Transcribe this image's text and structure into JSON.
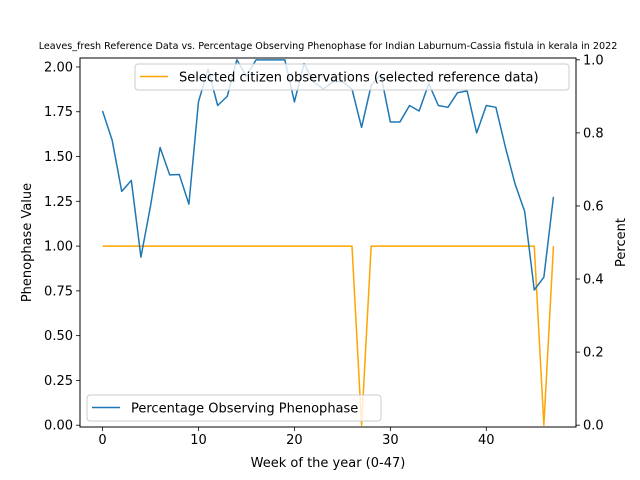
{
  "chart_data": {
    "type": "line",
    "title": "Leaves_fresh Reference Data vs. Percentage Observing Phenophase for Indian Laburnum-Cassia fistula in kerala in 2022",
    "xlabel": "Week of the year (0-47)",
    "ylabel_left": "Phenophase Value",
    "ylabel_right": "Percent",
    "xlim": [
      -2.35,
      49.35
    ],
    "ylim_left": [
      -0.01,
      2.05
    ],
    "ylim_right": [
      -0.005,
      1.005
    ],
    "x_ticks": [
      0,
      10,
      20,
      30,
      40
    ],
    "y_ticks_left": [
      0.0,
      0.25,
      0.5,
      0.75,
      1.0,
      1.25,
      1.5,
      1.75,
      2.0
    ],
    "y_tick_labels_left": [
      "0.00",
      "0.25",
      "0.50",
      "0.75",
      "1.00",
      "1.25",
      "1.50",
      "1.75",
      "2.00"
    ],
    "y_ticks_right": [
      0.0,
      0.2,
      0.4,
      0.6,
      0.8,
      1.0
    ],
    "y_tick_labels_right": [
      "0.0",
      "0.2",
      "0.4",
      "0.6",
      "0.8",
      "1.0"
    ],
    "series": [
      {
        "name": "Selected citizen observations (selected reference data)",
        "axis": "left",
        "color": "#ffa500",
        "x": [
          0,
          1,
          2,
          3,
          4,
          5,
          6,
          7,
          8,
          9,
          10,
          11,
          12,
          13,
          14,
          15,
          16,
          17,
          18,
          19,
          20,
          21,
          22,
          23,
          24,
          25,
          26,
          27,
          28,
          29,
          30,
          31,
          32,
          33,
          34,
          35,
          36,
          37,
          38,
          39,
          40,
          41,
          42,
          43,
          44,
          45,
          46,
          47
        ],
        "values": [
          1,
          1,
          1,
          1,
          1,
          1,
          1,
          1,
          1,
          1,
          1,
          1,
          1,
          1,
          1,
          1,
          1,
          1,
          1,
          1,
          1,
          1,
          1,
          1,
          1,
          1,
          1,
          0,
          1,
          1,
          1,
          1,
          1,
          1,
          1,
          1,
          1,
          1,
          1,
          1,
          1,
          1,
          1,
          1,
          1,
          1,
          0,
          1
        ]
      },
      {
        "name": "Percentage Observing Phenophase",
        "axis": "right",
        "color": "#1f77b4",
        "x": [
          0,
          1,
          2,
          3,
          4,
          5,
          6,
          7,
          8,
          9,
          10,
          11,
          12,
          13,
          14,
          15,
          16,
          17,
          18,
          19,
          20,
          21,
          22,
          23,
          24,
          25,
          26,
          27,
          28,
          29,
          30,
          31,
          32,
          33,
          34,
          35,
          36,
          37,
          38,
          39,
          40,
          41,
          42,
          43,
          44,
          45,
          46,
          47
        ],
        "values": [
          0.86,
          0.78,
          0.64,
          0.67,
          0.46,
          0.6,
          0.76,
          0.685,
          0.686,
          0.605,
          0.885,
          0.975,
          0.875,
          0.9,
          1.0,
          0.955,
          1.0,
          1.0,
          1.0,
          1.0,
          0.885,
          0.99,
          0.94,
          0.92,
          0.94,
          0.94,
          0.92,
          0.815,
          0.93,
          0.96,
          0.83,
          0.83,
          0.875,
          0.86,
          0.935,
          0.875,
          0.87,
          0.91,
          0.915,
          0.8,
          0.875,
          0.87,
          0.76,
          0.66,
          0.585,
          0.37,
          0.405,
          0.625
        ]
      }
    ],
    "legends": [
      {
        "location": "upper right",
        "series": 0
      },
      {
        "location": "lower left",
        "series": 1
      }
    ]
  }
}
